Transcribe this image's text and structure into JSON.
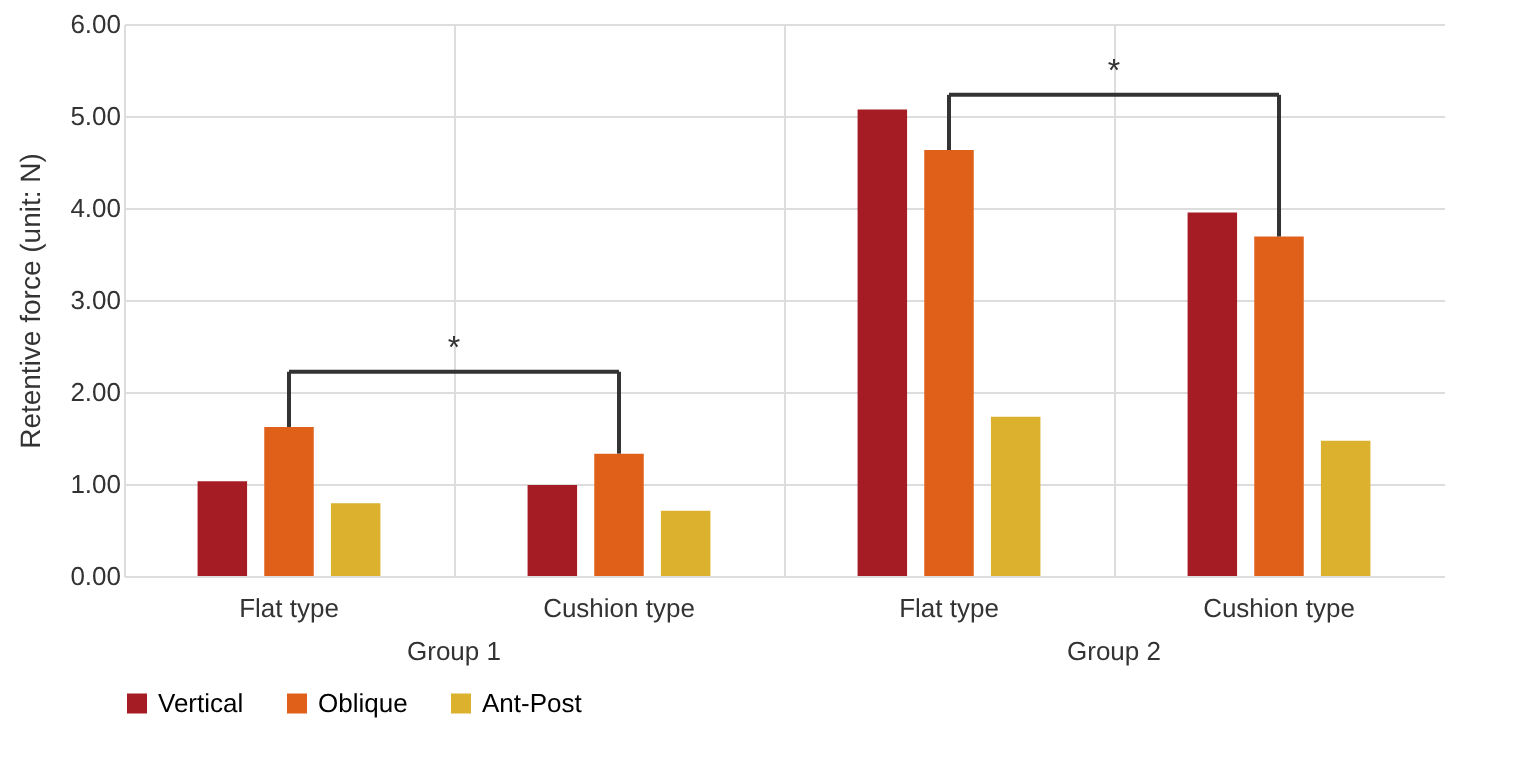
{
  "chart_data": {
    "type": "bar",
    "ylabel": "Retentive force (unit: N)",
    "categories": [
      "Flat type",
      "Cushion type",
      "Flat type",
      "Cushion type"
    ],
    "series": [
      {
        "name": "Vertical",
        "color": "#a51c24",
        "values": [
          1.03,
          0.99,
          5.07,
          3.95
        ]
      },
      {
        "name": "Oblique",
        "color": "#e0601a",
        "values": [
          1.62,
          1.33,
          4.63,
          3.69
        ]
      },
      {
        "name": "Ant-Post",
        "color": "#dbb12d",
        "values": [
          0.79,
          0.71,
          1.73,
          1.47
        ]
      }
    ],
    "ylim": [
      0,
      6
    ],
    "yticks": [
      {
        "value": 0,
        "label": "0.00"
      },
      {
        "value": 1,
        "label": "1.00"
      },
      {
        "value": 2,
        "label": "2.00"
      },
      {
        "value": 3,
        "label": "3.00"
      },
      {
        "value": 4,
        "label": "4.00"
      },
      {
        "value": 5,
        "label": "5.00"
      },
      {
        "value": 6,
        "label": "6.00"
      }
    ],
    "annotations": [
      "Group 1",
      "Group 2",
      "*",
      "*"
    ],
    "grid": true,
    "legend": "bottom"
  }
}
